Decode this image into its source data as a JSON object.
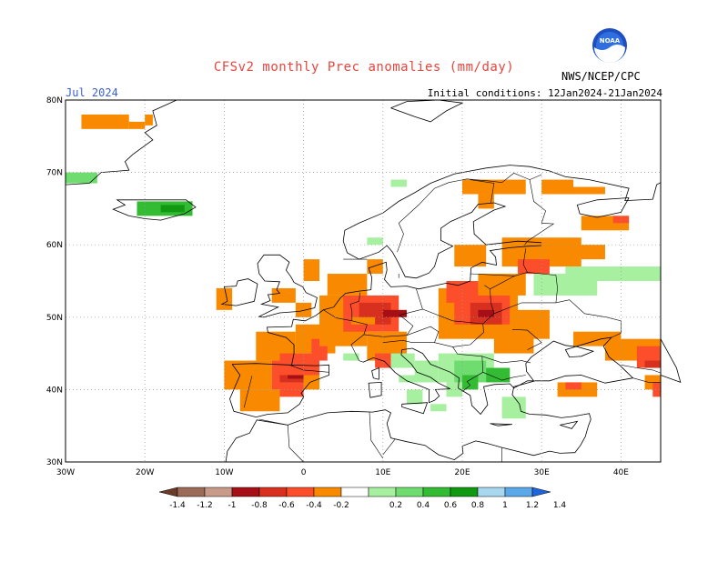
{
  "header": {
    "title": "CFSv2 monthly Prec anomalies (mm/day)",
    "valid_month": "Jul 2024",
    "initial_conditions": "Initial conditions: 12Jan2024-21Jan2024",
    "agency": "NWS/NCEP/CPC",
    "logo_text": "NOAA"
  },
  "map": {
    "lon_range": [
      -30,
      45
    ],
    "lat_range": [
      30,
      80
    ],
    "lat_labels": [
      "80N",
      "70N",
      "60N",
      "50N",
      "40N",
      "30N"
    ],
    "lon_labels": [
      "30W",
      "20W",
      "10W",
      "0",
      "10E",
      "20E",
      "30E",
      "40E"
    ],
    "grid": "dotted"
  },
  "colorbar": {
    "labels": [
      "-1.4",
      "-1.2",
      "-1",
      "-0.8",
      "-0.6",
      "-0.4",
      "-0.2",
      "0.2",
      "0.4",
      "0.6",
      "0.8",
      "1",
      "1.2",
      "1.4"
    ],
    "colors": [
      "#6b3a2a",
      "#9c6b58",
      "#c79a8a",
      "#a50f15",
      "#d7301f",
      "#fc4e2a",
      "#f98a00",
      "#ffffff",
      "#a6f0a0",
      "#6fdc6f",
      "#33bb33",
      "#119911",
      "#a8d8f0",
      "#5aa8e8",
      "#1e64dc"
    ]
  },
  "anomaly_regions": [
    {
      "name": "Iberia",
      "level": "-0.6"
    },
    {
      "name": "France-Germany",
      "level": "-0.6"
    },
    {
      "name": "Eastern Europe",
      "level": "-0.6"
    },
    {
      "name": "Scandinavia",
      "level": "-0.4"
    },
    {
      "name": "Balkans",
      "level": "0.6"
    },
    {
      "name": "Russia",
      "level": "0.4"
    },
    {
      "name": "Iceland",
      "level": "0.6"
    },
    {
      "name": "Turkey-Caucasus",
      "level": "-0.6"
    }
  ]
}
